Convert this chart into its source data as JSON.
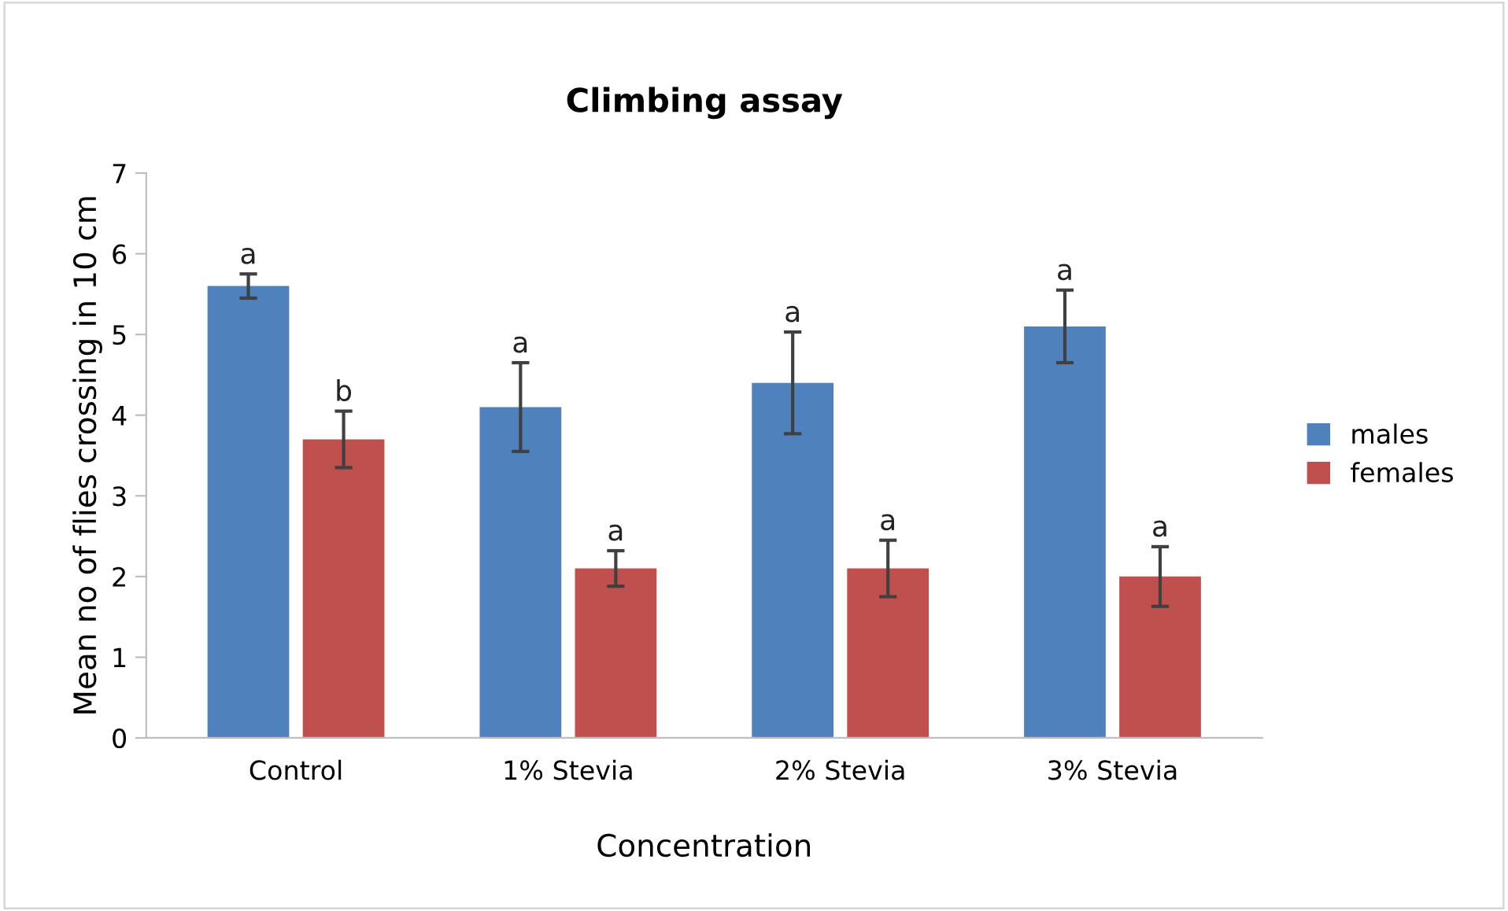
{
  "chart_data": {
    "type": "bar",
    "title": "Climbing assay",
    "xlabel": "Concentration",
    "ylabel": "Mean no of flies crossing in 10 cm",
    "categories": [
      "Control",
      "1% Stevia",
      "2% Stevia",
      "3% Stevia"
    ],
    "series": [
      {
        "name": "males",
        "color": "#4f81bd",
        "values": [
          5.6,
          4.1,
          4.4,
          5.1
        ],
        "errors": [
          0.15,
          0.55,
          0.63,
          0.45
        ],
        "value_labels": [
          "a",
          "a",
          "a",
          "a"
        ]
      },
      {
        "name": "females",
        "color": "#c0504d",
        "values": [
          3.7,
          2.1,
          2.1,
          2.0
        ],
        "errors": [
          0.35,
          0.22,
          0.35,
          0.37
        ],
        "value_labels": [
          "b",
          "a",
          "a",
          "a"
        ]
      }
    ],
    "ylim": [
      0,
      7
    ],
    "yticks": [
      0,
      1,
      2,
      3,
      4,
      5,
      6,
      7
    ],
    "grid": false,
    "legend": "right"
  }
}
